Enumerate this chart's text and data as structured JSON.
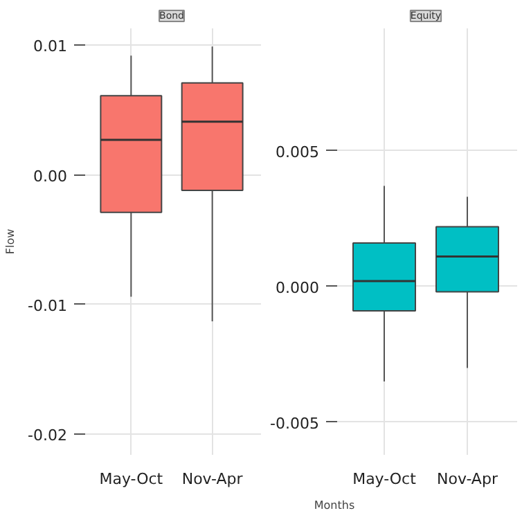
{
  "chart_data": [
    {
      "type": "box",
      "title": "Bond",
      "ylabel": "Flow",
      "categories": [
        "May-Oct",
        "Nov-Apr"
      ],
      "series": [
        {
          "color": "#f8766d",
          "boxes": [
            {
              "low": -0.0094,
              "q1": -0.0029,
              "median": 0.0027,
              "q3": 0.0061,
              "high": 0.0092
            },
            {
              "low": -0.0113,
              "q1": -0.0012,
              "median": 0.0041,
              "q3": 0.0071,
              "high": 0.0099
            }
          ]
        }
      ],
      "ylim": [
        -0.0216,
        0.0113
      ],
      "yticks": [
        {
          "value": -0.02,
          "label": "-0.02"
        },
        {
          "value": -0.01,
          "label": "-0.01"
        },
        {
          "value": 0,
          "label": "0.00"
        },
        {
          "value": 0.01,
          "label": "0.01"
        }
      ],
      "grid": true
    },
    {
      "type": "box",
      "title": "Equity",
      "xlabel": "Months",
      "categories": [
        "May-Oct",
        "Nov-Apr"
      ],
      "series": [
        {
          "color": "#00bfc4",
          "boxes": [
            {
              "low": -0.0035,
              "q1": -0.0009,
              "median": 0.0002,
              "q3": 0.0016,
              "high": 0.0037
            },
            {
              "low": -0.003,
              "q1": -0.0002,
              "median": 0.0011,
              "q3": 0.0022,
              "high": 0.0033
            }
          ]
        }
      ],
      "ylim": [
        -0.0062,
        0.0095
      ],
      "yticks": [
        {
          "value": -0.005,
          "label": "-0.005"
        },
        {
          "value": 0,
          "label": "0.000"
        },
        {
          "value": 0.005,
          "label": "0.005"
        }
      ],
      "grid": true
    }
  ]
}
